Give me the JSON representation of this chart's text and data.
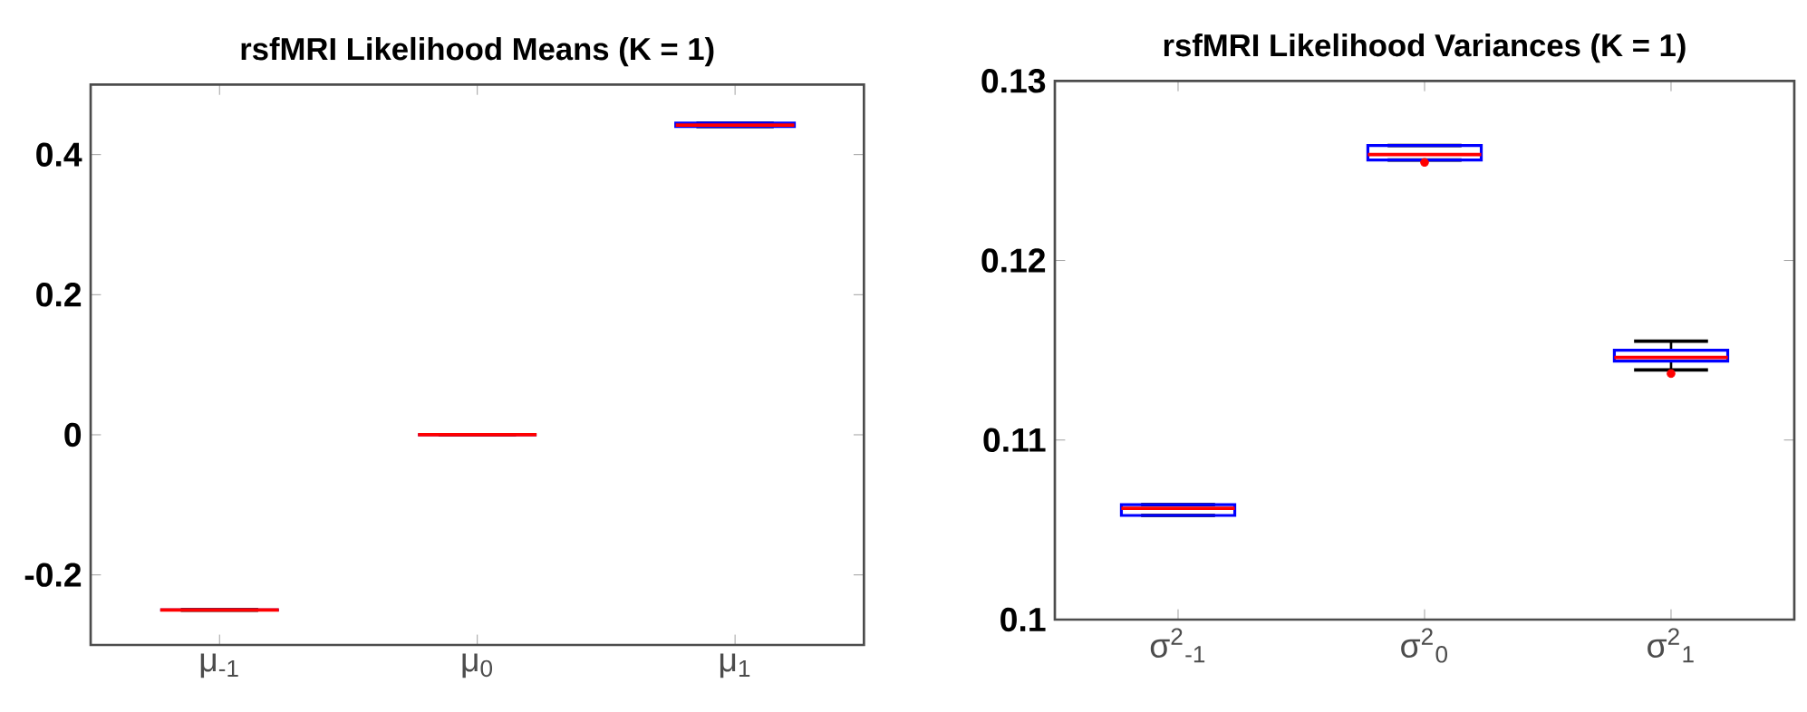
{
  "chart_data": [
    {
      "type": "box",
      "title": "rsfMRI Likelihood Means (K = 1)",
      "categories": [
        "μ$_{-1}$",
        "μ$_{0}$",
        "μ$_{1}$"
      ],
      "ylim": [
        -0.3,
        0.5
      ],
      "yticks": [
        -0.2,
        0,
        0.2,
        0.4
      ],
      "color": "#0000ff",
      "boxes": [
        {
          "low": -0.25,
          "q1": -0.25,
          "median": -0.25,
          "q3": -0.25,
          "high": -0.25
        },
        {
          "low": 0,
          "q1": 0,
          "median": 0,
          "q3": 0,
          "high": 0
        },
        {
          "low": 0.44,
          "q1": 0.44,
          "median": 0.442,
          "q3": 0.445,
          "high": 0.445
        }
      ]
    },
    {
      "type": "box",
      "title": "rsfMRI Likelihood Variances (K = 1)",
      "categories": [
        "σ$^{2}$$_{-1}$",
        "σ$^{2}$$_{0}$",
        "σ$^{2}$$_{1}$"
      ],
      "ylim": [
        0.1,
        0.13
      ],
      "yticks": [
        0.1,
        0.11,
        0.12,
        0.13
      ],
      "color": "#0000ff",
      "boxes": [
        {
          "low": 0.1058,
          "q1": 0.1058,
          "median": 0.1062,
          "q3": 0.1064,
          "high": 0.1064
        },
        {
          "low": 0.1256,
          "q1": 0.1256,
          "median": 0.1259,
          "q3": 0.1264,
          "high": 0.1264,
          "outliers": [
            0.12546
          ]
        },
        {
          "low": 0.1139,
          "q1": 0.1144,
          "median": 0.1146,
          "q3": 0.115,
          "high": 0.1155,
          "outliers": [
            0.1137
          ]
        }
      ]
    }
  ]
}
